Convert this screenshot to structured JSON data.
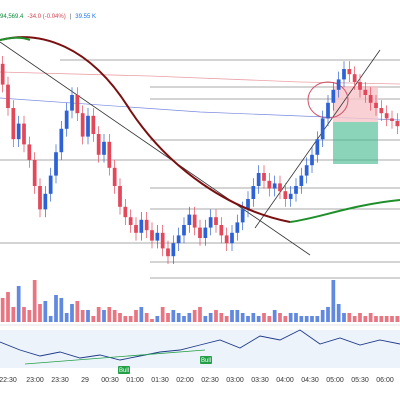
{
  "header": {
    "close_value": "94,569.4",
    "change_value": "-34.0 (-0.04%)",
    "volume_value": "39.55 K"
  },
  "colors": {
    "up": "#2d62d6",
    "down": "#e2475a",
    "ma_dark": "#7a1010",
    "ma_green": "#1f8f2a",
    "trendline": "#333333",
    "hline": "#555555",
    "osc_line": "#1e3a8a",
    "osc_fill": "#dbe7f7",
    "bull_badge": "#22a047",
    "short_zone": "#f7c5c9",
    "target_zone": "#3db58a"
  },
  "chart_data": {
    "type": "candlestick",
    "title": "",
    "price_range": [
      0,
      100
    ],
    "x_tick_labels": [
      "22:30",
      "23:00",
      "23:30",
      "29",
      "00:30",
      "01:00",
      "01:30",
      "02:00",
      "02:30",
      "03:00",
      "03:30",
      "04:00",
      "04:30",
      "05:00",
      "05:30",
      "06:00"
    ],
    "candles": [
      [
        87,
        79
      ],
      [
        79,
        70
      ],
      [
        70,
        58
      ],
      [
        58,
        64
      ],
      [
        64,
        56
      ],
      [
        56,
        50
      ],
      [
        50,
        40
      ],
      [
        40,
        31
      ],
      [
        31,
        37
      ],
      [
        37,
        44
      ],
      [
        44,
        53
      ],
      [
        53,
        62
      ],
      [
        62,
        69
      ],
      [
        69,
        75
      ],
      [
        75,
        68
      ],
      [
        68,
        59
      ],
      [
        59,
        67
      ],
      [
        67,
        60
      ],
      [
        60,
        52
      ],
      [
        52,
        57
      ],
      [
        57,
        47
      ],
      [
        47,
        40
      ],
      [
        40,
        32
      ],
      [
        32,
        28
      ],
      [
        28,
        25
      ],
      [
        25,
        22
      ],
      [
        22,
        27
      ],
      [
        27,
        23
      ],
      [
        23,
        19
      ],
      [
        19,
        22
      ],
      [
        22,
        16
      ],
      [
        16,
        13
      ],
      [
        13,
        18
      ],
      [
        18,
        21
      ],
      [
        21,
        25
      ],
      [
        25,
        29
      ],
      [
        29,
        24
      ],
      [
        24,
        20
      ],
      [
        20,
        24
      ],
      [
        24,
        28
      ],
      [
        28,
        25
      ],
      [
        25,
        21
      ],
      [
        21,
        18
      ],
      [
        18,
        22
      ],
      [
        22,
        26
      ],
      [
        26,
        31
      ],
      [
        31,
        35
      ],
      [
        35,
        40
      ],
      [
        40,
        45
      ],
      [
        45,
        42
      ],
      [
        42,
        39
      ],
      [
        39,
        41
      ],
      [
        41,
        38
      ],
      [
        38,
        35
      ],
      [
        35,
        37
      ],
      [
        37,
        40
      ],
      [
        40,
        44
      ],
      [
        44,
        48
      ],
      [
        48,
        52
      ],
      [
        52,
        58
      ],
      [
        58,
        66
      ],
      [
        66,
        72
      ],
      [
        72,
        77
      ],
      [
        77,
        81
      ],
      [
        81,
        85
      ],
      [
        85,
        83
      ],
      [
        83,
        80
      ],
      [
        80,
        77
      ],
      [
        77,
        75
      ],
      [
        75,
        72
      ],
      [
        72,
        70
      ],
      [
        70,
        68
      ],
      [
        68,
        66
      ],
      [
        66,
        65
      ],
      [
        65,
        63
      ]
    ],
    "volume": [
      40,
      50,
      25,
      60,
      25,
      20,
      70,
      30,
      35,
      10,
      45,
      40,
      15,
      30,
      35,
      20,
      20,
      10,
      25,
      20,
      25,
      20,
      15,
      10,
      10,
      20,
      25,
      15,
      5,
      10,
      25,
      15,
      20,
      15,
      10,
      15,
      20,
      25,
      10,
      15,
      20,
      15,
      10,
      20,
      20,
      15,
      10,
      15,
      10,
      15,
      10,
      20,
      15,
      10,
      15,
      15,
      10,
      10,
      10,
      10,
      20,
      25,
      70,
      30,
      15,
      15,
      10,
      15,
      10,
      15,
      10,
      10,
      10,
      10,
      10
    ],
    "annotations": [
      {
        "type": "bull_label",
        "text": "Bull"
      },
      {
        "type": "bull_label",
        "text": "Bull"
      }
    ]
  }
}
